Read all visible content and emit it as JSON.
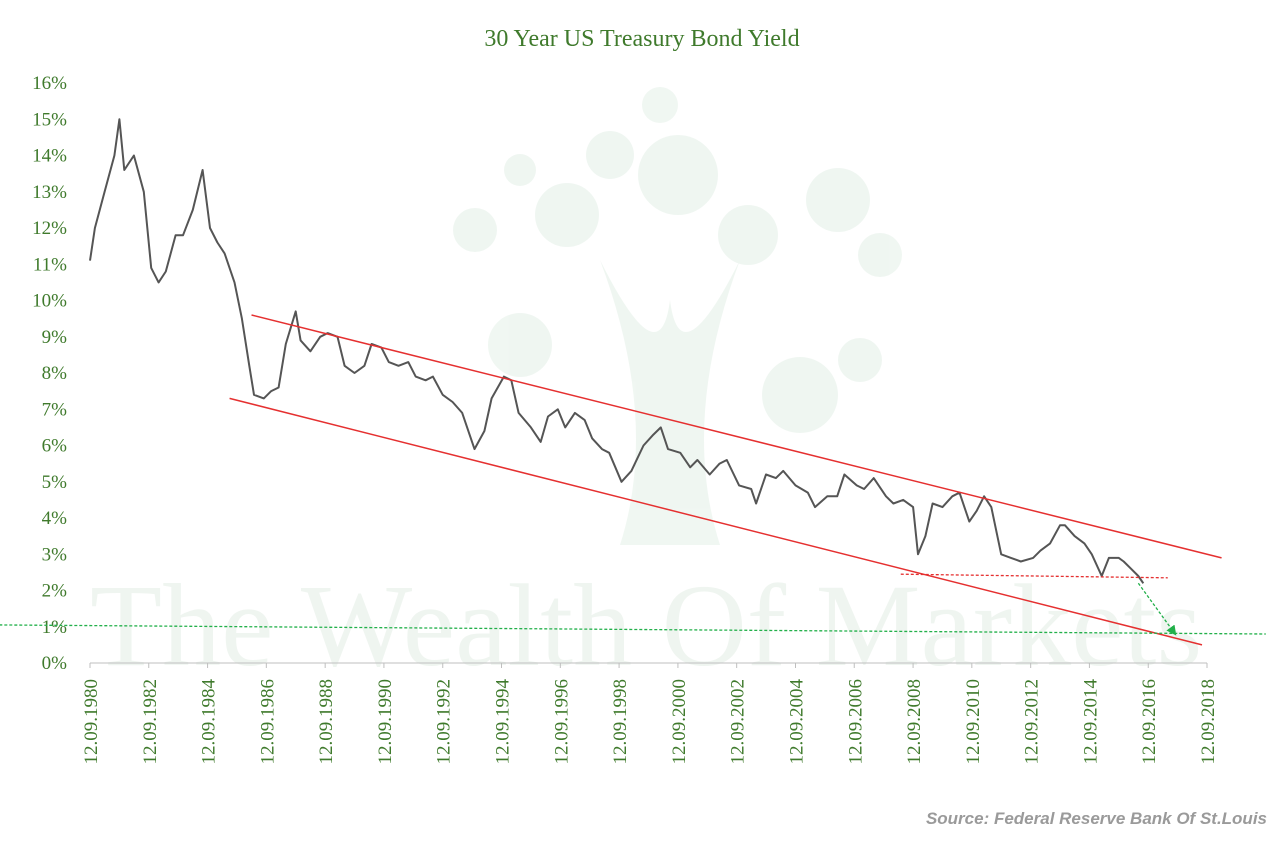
{
  "chart_data": {
    "type": "line",
    "title": "30 Year US Treasury Bond Yield",
    "source": "Source: Federal Reserve Bank Of St.Louis",
    "watermark": "The Wealth Of Markets",
    "xlim": [
      "1980-09-12",
      "2018-09-12"
    ],
    "xticks": [
      {
        "value": "1980-09-12",
        "label": "12.09.1980"
      },
      {
        "value": "1982-09-12",
        "label": "12.09.1982"
      },
      {
        "value": "1984-09-12",
        "label": "12.09.1984"
      },
      {
        "value": "1986-09-12",
        "label": "12.09.1986"
      },
      {
        "value": "1988-09-12",
        "label": "12.09.1988"
      },
      {
        "value": "1990-09-12",
        "label": "12.09.1990"
      },
      {
        "value": "1992-09-12",
        "label": "12.09.1992"
      },
      {
        "value": "1994-09-12",
        "label": "12.09.1994"
      },
      {
        "value": "1996-09-12",
        "label": "12.09.1996"
      },
      {
        "value": "1998-09-12",
        "label": "12.09.1998"
      },
      {
        "value": "2000-09-12",
        "label": "12.09.2000"
      },
      {
        "value": "2002-09-12",
        "label": "12.09.2002"
      },
      {
        "value": "2004-09-12",
        "label": "12.09.2004"
      },
      {
        "value": "2006-09-12",
        "label": "12.09.2006"
      },
      {
        "value": "2008-09-12",
        "label": "12.09.2008"
      },
      {
        "value": "2010-09-12",
        "label": "12.09.2010"
      },
      {
        "value": "2012-09-12",
        "label": "12.09.2012"
      },
      {
        "value": "2014-09-12",
        "label": "12.09.2014"
      },
      {
        "value": "2016-09-12",
        "label": "12.09.2016"
      },
      {
        "value": "2018-09-12",
        "label": "12.09.2018"
      }
    ],
    "ylim": [
      0,
      16
    ],
    "yticks": [
      {
        "value": 0,
        "label": "0%"
      },
      {
        "value": 1,
        "label": "1%"
      },
      {
        "value": 2,
        "label": "2%"
      },
      {
        "value": 3,
        "label": "3%"
      },
      {
        "value": 4,
        "label": "4%"
      },
      {
        "value": 5,
        "label": "5%"
      },
      {
        "value": 6,
        "label": "6%"
      },
      {
        "value": 7,
        "label": "7%"
      },
      {
        "value": 8,
        "label": "8%"
      },
      {
        "value": 9,
        "label": "9%"
      },
      {
        "value": 10,
        "label": "10%"
      },
      {
        "value": 11,
        "label": "11%"
      },
      {
        "value": 12,
        "label": "12%"
      },
      {
        "value": 13,
        "label": "13%"
      },
      {
        "value": 14,
        "label": "14%"
      },
      {
        "value": 15,
        "label": "15%"
      },
      {
        "value": 16,
        "label": "16%"
      }
    ],
    "grid": false,
    "color": "#555555",
    "x": [
      "1980-09-12",
      "1980-11-12",
      "1981-03-12",
      "1981-07-12",
      "1981-09-12",
      "1981-11-12",
      "1982-03-12",
      "1982-07-12",
      "1982-10-12",
      "1983-01-12",
      "1983-04-12",
      "1983-08-12",
      "1983-11-12",
      "1984-03-12",
      "1984-07-12",
      "1984-10-12",
      "1985-01-12",
      "1985-04-12",
      "1985-08-12",
      "1985-11-12",
      "1986-02-12",
      "1986-04-12",
      "1986-08-12",
      "1986-11-12",
      "1987-02-12",
      "1987-05-12",
      "1987-09-12",
      "1987-11-12",
      "1988-03-12",
      "1988-07-12",
      "1988-10-12",
      "1989-02-12",
      "1989-05-12",
      "1989-09-12",
      "1990-01-12",
      "1990-04-12",
      "1990-08-12",
      "1990-11-12",
      "1991-03-12",
      "1991-07-12",
      "1991-10-12",
      "1992-02-12",
      "1992-05-12",
      "1992-09-12",
      "1993-01-12",
      "1993-05-12",
      "1993-10-12",
      "1994-02-12",
      "1994-05-12",
      "1994-10-12",
      "1995-01-12",
      "1995-04-12",
      "1995-09-12",
      "1996-01-12",
      "1996-04-12",
      "1996-08-12",
      "1996-11-12",
      "1997-03-12",
      "1997-07-12",
      "1997-10-12",
      "1998-02-12",
      "1998-05-12",
      "1998-10-12",
      "1999-02-12",
      "1999-07-12",
      "1999-11-12",
      "2000-02-12",
      "2000-05-12",
      "2000-10-12",
      "2001-02-12",
      "2001-05-12",
      "2001-10-12",
      "2002-02-12",
      "2002-05-12",
      "2002-10-12",
      "2003-03-12",
      "2003-05-12",
      "2003-09-12",
      "2004-01-12",
      "2004-04-12",
      "2004-09-12",
      "2005-02-12",
      "2005-05-12",
      "2005-10-12",
      "2006-02-12",
      "2006-05-12",
      "2006-10-12",
      "2007-01-12",
      "2007-05-12",
      "2007-10-12",
      "2008-01-12",
      "2008-05-12",
      "2008-09-12",
      "2008-11-12",
      "2009-02-12",
      "2009-05-12",
      "2009-09-12",
      "2010-01-12",
      "2010-04-12",
      "2010-08-12",
      "2010-11-12",
      "2011-02-12",
      "2011-05-12",
      "2011-09-12",
      "2012-01-12",
      "2012-05-12",
      "2012-10-12",
      "2013-01-12",
      "2013-05-12",
      "2013-09-12",
      "2013-11-12",
      "2014-03-12",
      "2014-07-12",
      "2014-10-12",
      "2015-02-12",
      "2015-05-12",
      "2015-09-12",
      "2015-11-12",
      "2016-02-12",
      "2016-05-12",
      "2016-07-12"
    ],
    "values": [
      11.1,
      12.0,
      13.0,
      14.0,
      15.0,
      13.6,
      14.0,
      13.0,
      10.9,
      10.5,
      10.8,
      11.8,
      11.8,
      12.5,
      13.6,
      12.0,
      11.6,
      11.3,
      10.5,
      9.5,
      8.2,
      7.4,
      7.3,
      7.5,
      7.6,
      8.8,
      9.7,
      8.9,
      8.6,
      9.0,
      9.1,
      9.0,
      8.2,
      8.0,
      8.2,
      8.8,
      8.7,
      8.3,
      8.2,
      8.3,
      7.9,
      7.8,
      7.9,
      7.4,
      7.2,
      6.9,
      5.9,
      6.4,
      7.3,
      7.9,
      7.8,
      6.9,
      6.5,
      6.1,
      6.8,
      7.0,
      6.5,
      6.9,
      6.7,
      6.2,
      5.9,
      5.8,
      5.0,
      5.3,
      6.0,
      6.3,
      6.5,
      5.9,
      5.8,
      5.4,
      5.6,
      5.2,
      5.5,
      5.6,
      4.9,
      4.8,
      4.4,
      5.2,
      5.1,
      5.3,
      4.9,
      4.7,
      4.3,
      4.6,
      4.6,
      5.2,
      4.9,
      4.8,
      5.1,
      4.6,
      4.4,
      4.5,
      4.3,
      3.0,
      3.5,
      4.4,
      4.3,
      4.6,
      4.7,
      3.9,
      4.2,
      4.6,
      4.3,
      3.0,
      2.9,
      2.8,
      2.9,
      3.1,
      3.3,
      3.8,
      3.8,
      3.5,
      3.3,
      3.0,
      2.4,
      2.9,
      2.9,
      2.8,
      2.6,
      2.4,
      2.2
    ],
    "lines": [
      {
        "color": "#e53030",
        "dash": false,
        "arrow": false,
        "x": [
          "1986-03-12",
          "2019-03-12"
        ],
        "y": [
          9.6,
          2.9
        ]
      },
      {
        "color": "#e53030",
        "dash": false,
        "arrow": false,
        "x": [
          "1985-06-12",
          "2018-07-12"
        ],
        "y": [
          7.3,
          0.5
        ]
      },
      {
        "color": "#e53030",
        "dash": true,
        "arrow": false,
        "x": [
          "2008-04-12",
          "2017-05-12"
        ],
        "y": [
          2.45,
          2.35
        ]
      },
      {
        "color": "#22b04a",
        "dash": true,
        "arrow": false,
        "x": [
          "1977-08-12",
          "2020-09-12"
        ],
        "y": [
          1.05,
          0.8
        ]
      },
      {
        "color": "#22b04a",
        "dash": true,
        "arrow": true,
        "x": [
          "2016-05-12",
          "2017-08-12"
        ],
        "y": [
          2.2,
          0.8
        ]
      }
    ]
  }
}
